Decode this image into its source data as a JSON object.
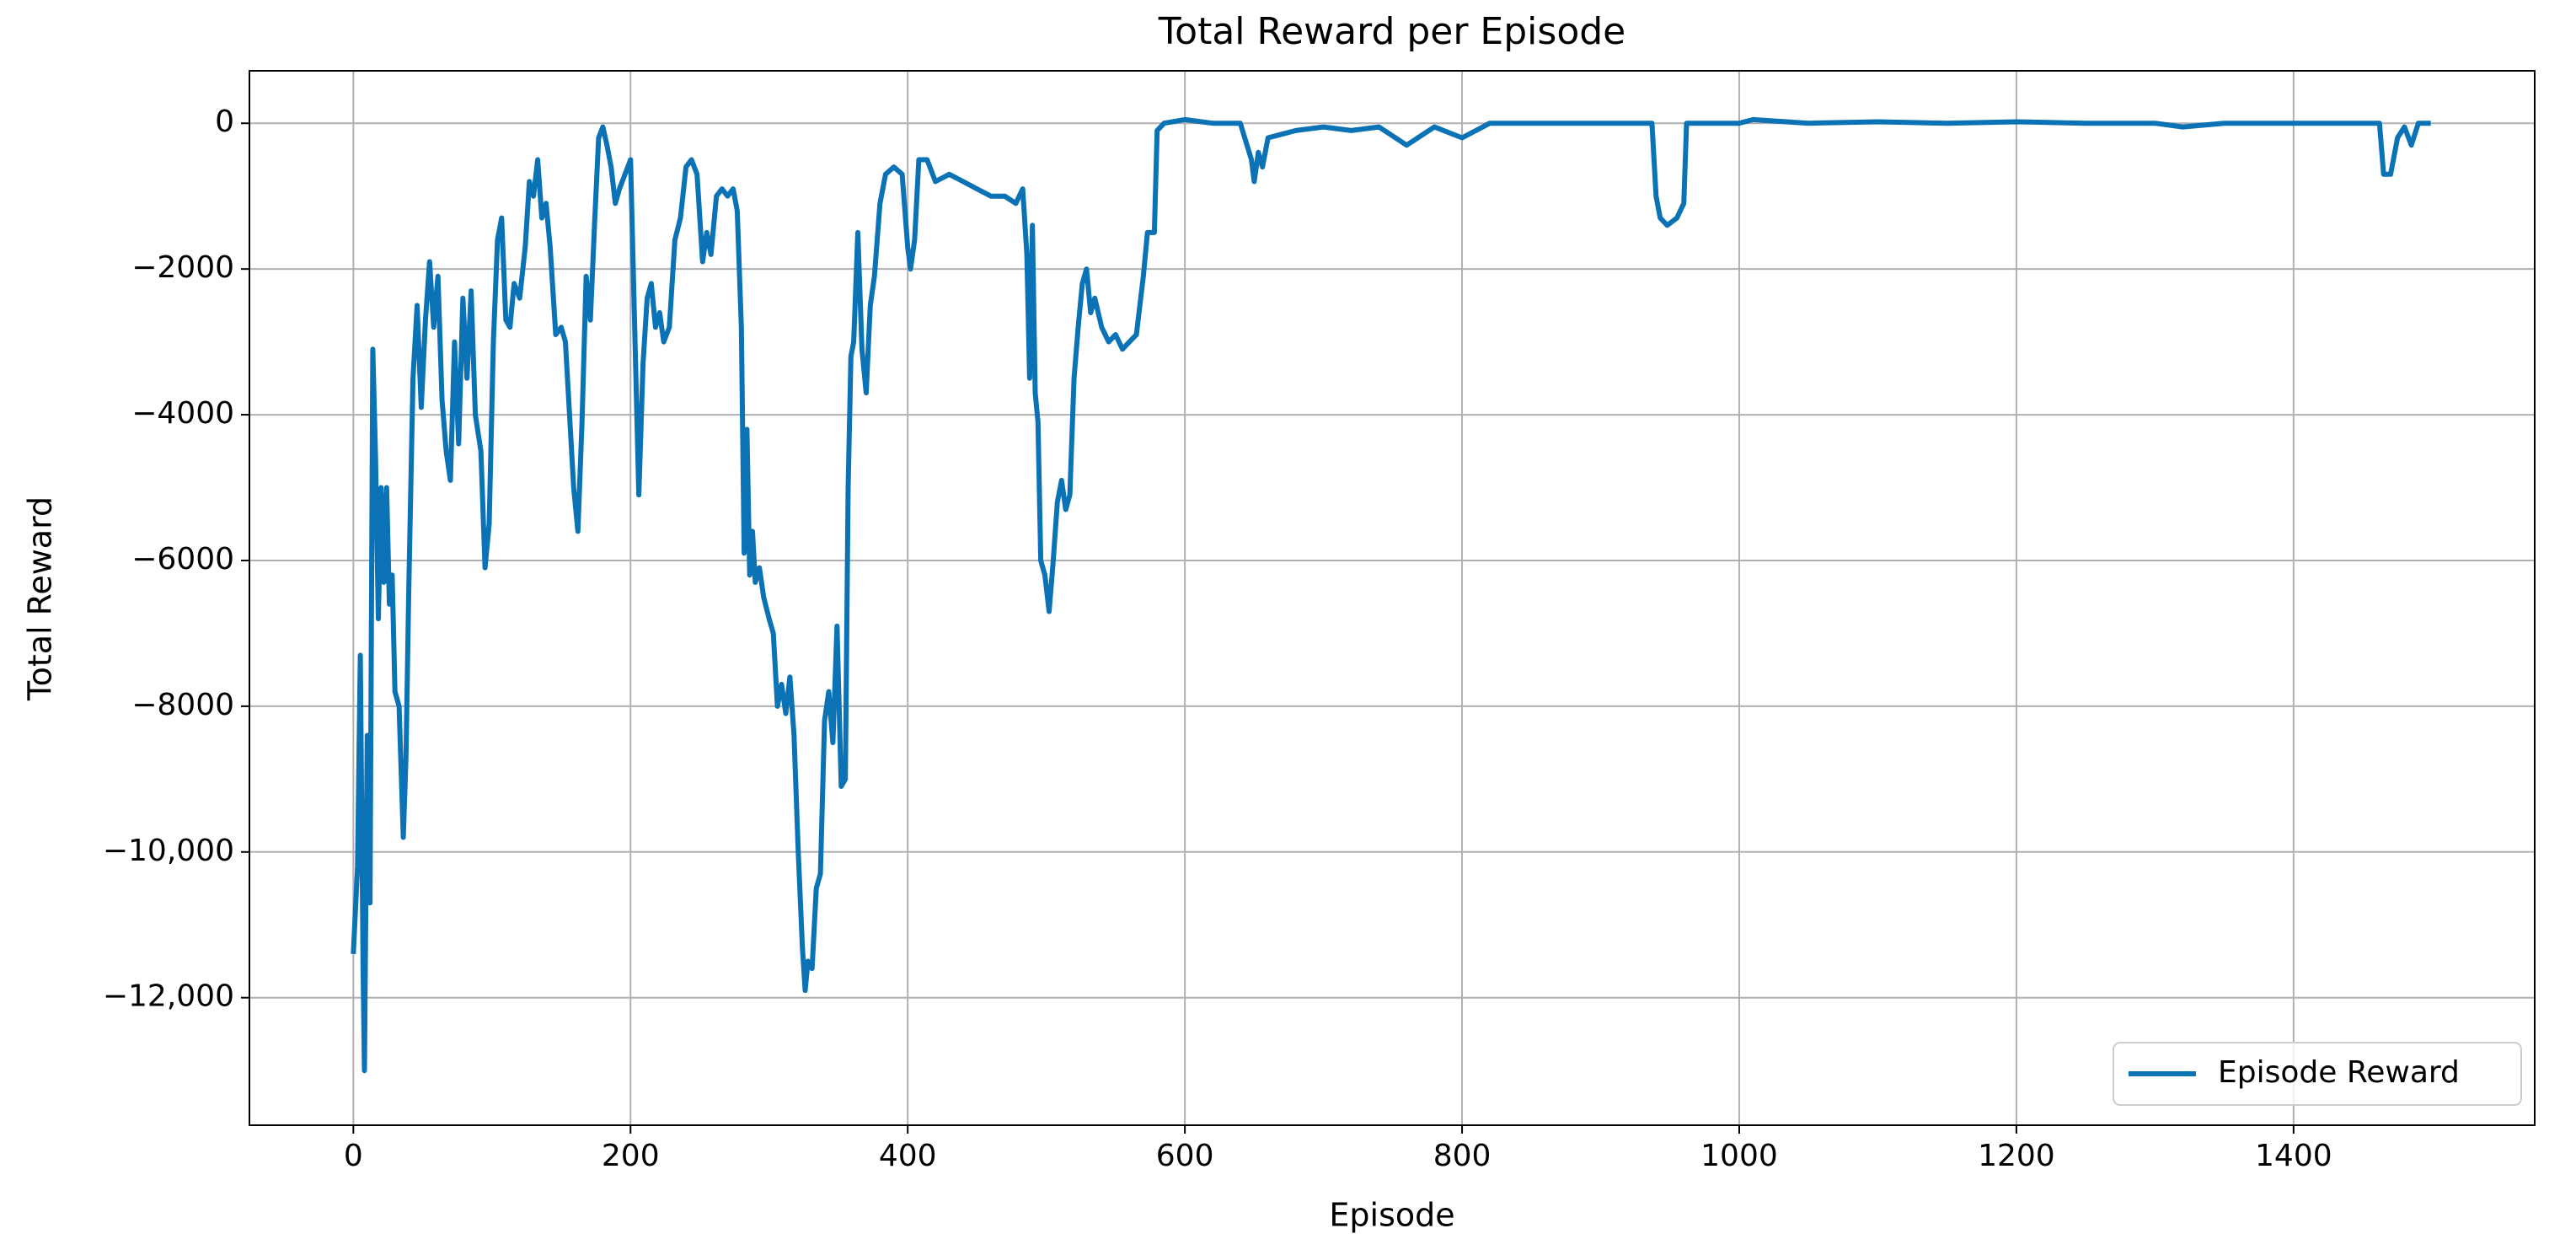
{
  "chart_data": {
    "type": "line",
    "title": "Total Reward per Episode",
    "x_label": "Episode",
    "y_label": "Total Reward",
    "x": [
      0,
      3,
      5,
      7,
      8,
      10,
      12,
      14,
      16,
      18,
      20,
      22,
      24,
      26,
      28,
      30,
      33,
      36,
      38,
      40,
      43,
      46,
      49,
      52,
      55,
      58,
      61,
      64,
      67,
      70,
      73,
      76,
      79,
      82,
      85,
      88,
      92,
      95,
      98,
      101,
      104,
      107,
      110,
      113,
      116,
      120,
      124,
      127,
      130,
      133,
      136,
      139,
      142,
      146,
      150,
      153,
      156,
      159,
      162,
      165,
      168,
      171,
      174,
      177,
      180,
      183,
      186,
      189,
      192,
      196,
      200,
      203,
      206,
      209,
      212,
      215,
      218,
      221,
      224,
      228,
      232,
      236,
      240,
      244,
      248,
      252,
      255,
      258,
      262,
      266,
      270,
      274,
      277,
      280,
      282,
      284,
      286,
      288,
      290,
      293,
      296,
      300,
      303,
      306,
      309,
      312,
      315,
      318,
      321,
      324,
      326,
      328,
      331,
      334,
      337,
      340,
      343,
      346,
      349,
      352,
      355,
      357,
      359,
      361,
      364,
      367,
      370,
      373,
      376,
      380,
      384,
      390,
      396,
      400,
      402,
      405,
      408,
      414,
      420,
      430,
      440,
      450,
      460,
      470,
      478,
      483,
      486,
      488,
      490,
      492,
      494,
      496,
      499,
      502,
      505,
      508,
      511,
      514,
      517,
      520,
      523,
      526,
      529,
      532,
      535,
      540,
      545,
      550,
      555,
      560,
      565,
      570,
      573,
      578,
      580,
      585,
      600,
      620,
      640,
      648,
      650,
      653,
      656,
      660,
      670,
      680,
      700,
      720,
      740,
      760,
      780,
      800,
      810,
      820,
      860,
      900,
      930,
      937,
      940,
      943,
      948,
      955,
      960,
      962,
      1000,
      1010,
      1050,
      1100,
      1150,
      1200,
      1250,
      1300,
      1320,
      1350,
      1400,
      1450,
      1462,
      1465,
      1470,
      1475,
      1480,
      1485,
      1490,
      1499
    ],
    "series": [
      {
        "name": "Episode Reward",
        "color": "#0b72b5",
        "values": [
          -11400,
          -10200,
          -7300,
          -11600,
          -13000,
          -8400,
          -10700,
          -3100,
          -4600,
          -6800,
          -5000,
          -6300,
          -5000,
          -6600,
          -6200,
          -7800,
          -8000,
          -9800,
          -8700,
          -6400,
          -3500,
          -2500,
          -3900,
          -2700,
          -1900,
          -2800,
          -2100,
          -3800,
          -4500,
          -4900,
          -3000,
          -4400,
          -2400,
          -3500,
          -2300,
          -4000,
          -4500,
          -6100,
          -5500,
          -3000,
          -1600,
          -1300,
          -2700,
          -2800,
          -2200,
          -2400,
          -1700,
          -800,
          -1000,
          -500,
          -1300,
          -1100,
          -1700,
          -2900,
          -2800,
          -3000,
          -4000,
          -5000,
          -5600,
          -4100,
          -2100,
          -2700,
          -1400,
          -200,
          -50,
          -300,
          -600,
          -1100,
          -900,
          -700,
          -500,
          -2800,
          -5100,
          -3300,
          -2400,
          -2200,
          -2800,
          -2600,
          -3000,
          -2800,
          -1600,
          -1300,
          -600,
          -500,
          -700,
          -1900,
          -1500,
          -1800,
          -1000,
          -900,
          -1000,
          -900,
          -1200,
          -2800,
          -5900,
          -4200,
          -6200,
          -5600,
          -6300,
          -6100,
          -6500,
          -6800,
          -7000,
          -8000,
          -7700,
          -8100,
          -7600,
          -8400,
          -10000,
          -11300,
          -11900,
          -11500,
          -11600,
          -10500,
          -10300,
          -8200,
          -7800,
          -8500,
          -6900,
          -9100,
          -9000,
          -5000,
          -3200,
          -3000,
          -1500,
          -3100,
          -3700,
          -2500,
          -2100,
          -1100,
          -700,
          -600,
          -700,
          -1700,
          -2000,
          -1600,
          -500,
          -500,
          -800,
          -700,
          -800,
          -900,
          -1000,
          -1000,
          -1100,
          -900,
          -1800,
          -3500,
          -1400,
          -3700,
          -4100,
          -6000,
          -6200,
          -6700,
          -6000,
          -5200,
          -4900,
          -5300,
          -5100,
          -3500,
          -2800,
          -2200,
          -2000,
          -2600,
          -2400,
          -2800,
          -3000,
          -2900,
          -3100,
          -3000,
          -2900,
          -2100,
          -1500,
          -1500,
          -100,
          0,
          50,
          0,
          0,
          -500,
          -800,
          -400,
          -600,
          -200,
          -150,
          -100,
          -50,
          -100,
          -50,
          -300,
          -50,
          -200,
          -100,
          0,
          0,
          0,
          0,
          0,
          -1000,
          -1300,
          -1400,
          -1300,
          -1100,
          0,
          0,
          50,
          0,
          20,
          0,
          20,
          0,
          0,
          -50,
          0,
          0,
          0,
          0,
          -700,
          -700,
          -200,
          -50,
          -300,
          0,
          0
        ]
      }
    ],
    "xlim": [
      -75,
      1574
    ],
    "ylim": [
      -13750,
      720
    ],
    "xticks": [
      0,
      200,
      400,
      600,
      800,
      1000,
      1200,
      1400
    ],
    "yticks": [
      0,
      {
        "value": -2000,
        "label": "−2000"
      },
      {
        "value": -4000,
        "label": "−4000"
      },
      {
        "value": -6000,
        "label": "−6000"
      },
      {
        "value": -8000,
        "label": "−8000"
      },
      {
        "value": -10000,
        "label": "−10,000"
      },
      {
        "value": -12000,
        "label": "−12,000"
      }
    ],
    "grid": true,
    "legend": "lower right"
  }
}
